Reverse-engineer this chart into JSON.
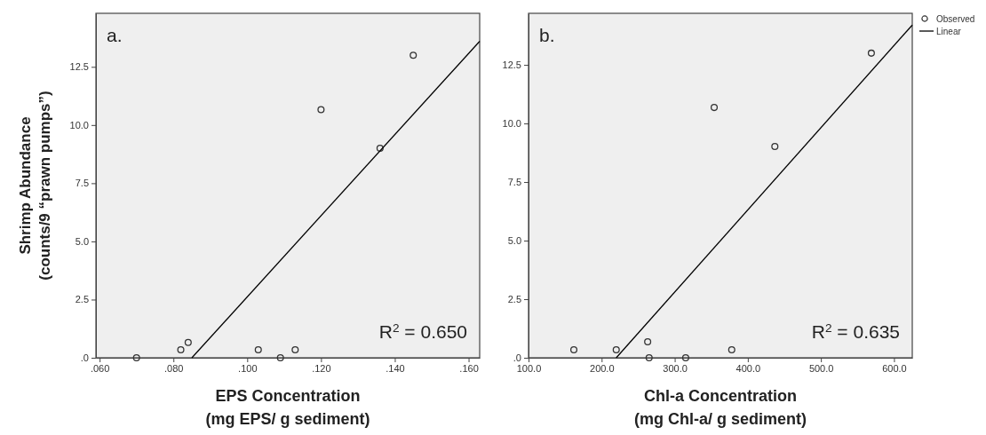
{
  "chart_data": [
    {
      "type": "scatter",
      "xlabel": "EPS Concentration\n(mg EPS/ g sediment)",
      "ylabel": "Shrimp Abundance\n(counts/9 “prawn pumps”)",
      "xlim": [
        0.059,
        0.163
      ],
      "ylim": [
        0,
        14.8
      ],
      "xticks": [
        {
          "value": 0.06,
          "label": ".060"
        },
        {
          "value": 0.08,
          "label": ".080"
        },
        {
          "value": 0.1,
          "label": ".100"
        },
        {
          "value": 0.12,
          "label": ".120"
        },
        {
          "value": 0.14,
          "label": ".140"
        },
        {
          "value": 0.16,
          "label": ".160"
        }
      ],
      "yticks": [
        {
          "value": 0,
          "label": ".0"
        },
        2.5,
        {
          "value": 5,
          "label": "5.0"
        },
        7.5,
        {
          "value": 10,
          "label": "10.0"
        },
        12.5
      ],
      "line_style": "solid",
      "grid": false,
      "legend": false,
      "annotations": [
        "a.",
        "R$^{2}$ = 0.650"
      ],
      "series": [
        {
          "marker": "circle",
          "color": "#333333",
          "x": [
            0.07,
            0.082,
            0.084,
            0.103,
            0.109,
            0.113,
            0.12,
            0.136,
            0.145
          ],
          "values": [
            0,
            0.34,
            0.66,
            0.34,
            0,
            0.34,
            10.66,
            9.0,
            13.0
          ]
        },
        {
          "type": "line",
          "marker": "none",
          "color": "#000000",
          "x": [
            0.085,
            0.163
          ],
          "values": [
            0,
            13.6
          ]
        }
      ]
    },
    {
      "type": "scatter",
      "xlabel": "Chl-a Concentration\n(mg Chl-a/ g sediment)",
      "xlim": [
        100,
        625
      ],
      "ylim": [
        0,
        14.7
      ],
      "xticks": [
        {
          "value": 100,
          "label": "100.0"
        },
        {
          "value": 200,
          "label": "200.0"
        },
        {
          "value": 300,
          "label": "300.0"
        },
        {
          "value": 400,
          "label": "400.0"
        },
        {
          "value": 500,
          "label": "500.0"
        },
        {
          "value": 600,
          "label": "600.0"
        }
      ],
      "yticks": [
        {
          "value": 0,
          "label": ".0"
        },
        2.5,
        {
          "value": 5,
          "label": "5.0"
        },
        7.5,
        {
          "value": 10,
          "label": "10.0"
        },
        12.5
      ],
      "line_style": "solid",
      "grid": false,
      "legend": "top right",
      "annotations": [
        "b.",
        "R$^{2}$ = 0.635"
      ],
      "series": [
        {
          "marker": "circle",
          "name": "Observed",
          "color": "#333333",
          "x": [
            162,
            220,
            263,
            265,
            315,
            354,
            378,
            437,
            569
          ],
          "values": [
            0.34,
            0.34,
            0.68,
            0,
            0,
            10.68,
            0.34,
            9.02,
            13.0
          ]
        },
        {
          "type": "line",
          "marker": "none",
          "name": "Linear",
          "color": "#000000",
          "x": [
            220,
            625
          ],
          "values": [
            0,
            14.2
          ]
        }
      ]
    }
  ]
}
